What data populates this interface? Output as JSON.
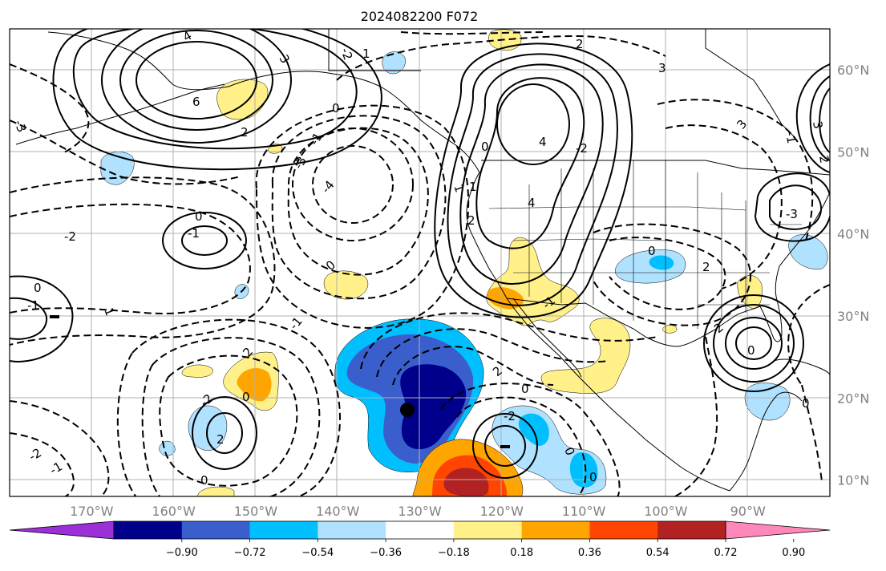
{
  "title": "2024082200 F072",
  "map": {
    "projection": "plate-carree",
    "lon_range": [
      -180,
      -80
    ],
    "lat_range": [
      8,
      65
    ],
    "longitude_labels": [
      "170°W",
      "160°W",
      "150°W",
      "140°W",
      "130°W",
      "120°W",
      "110°W",
      "100°W",
      "90°W"
    ],
    "longitude_values": [
      -170,
      -160,
      -150,
      -140,
      -130,
      -120,
      -110,
      -100,
      -90
    ],
    "latitude_labels": [
      "60°N",
      "50°N",
      "40°N",
      "30°N",
      "20°N",
      "10°N"
    ],
    "latitude_values": [
      60,
      50,
      40,
      30,
      20,
      10
    ],
    "grid": true,
    "storm_marker": {
      "lon": -130,
      "lat": 18.5
    }
  },
  "colorbar": {
    "labels": [
      "−0.90",
      "−0.72",
      "−0.54",
      "−0.36",
      "−0.18",
      "0.18",
      "0.36",
      "0.54",
      "0.72",
      "0.90"
    ],
    "colors": [
      "#9b30d9",
      "#00008b",
      "#3a5fcd",
      "#00bfff",
      "#b0e2ff",
      "#ffffff",
      "#fff08a",
      "#ffa500",
      "#ff4500",
      "#b22222",
      "#ff88bb"
    ],
    "extend": "both"
  },
  "chart_data": {
    "type": "contour-map",
    "contour_label_values": [
      "4",
      "3",
      "6",
      "2",
      "0",
      "-2",
      "-3",
      "-1",
      "1",
      "2",
      "-2",
      "0",
      "1",
      "4",
      "4",
      "2",
      "1",
      "3",
      "0",
      "-3",
      "-4",
      "-1",
      "-2",
      "0",
      "-1",
      "1",
      "0",
      "2",
      "-1",
      "-2",
      "-1",
      "-2",
      "2",
      "0",
      "0",
      "2",
      "-1",
      "0",
      "-2",
      "0",
      "0",
      "0",
      "2",
      "3",
      "2",
      "0",
      "-3",
      "-1",
      "2",
      "0",
      "3"
    ],
    "shading_min": -0.9,
    "shading_max": 0.9
  }
}
